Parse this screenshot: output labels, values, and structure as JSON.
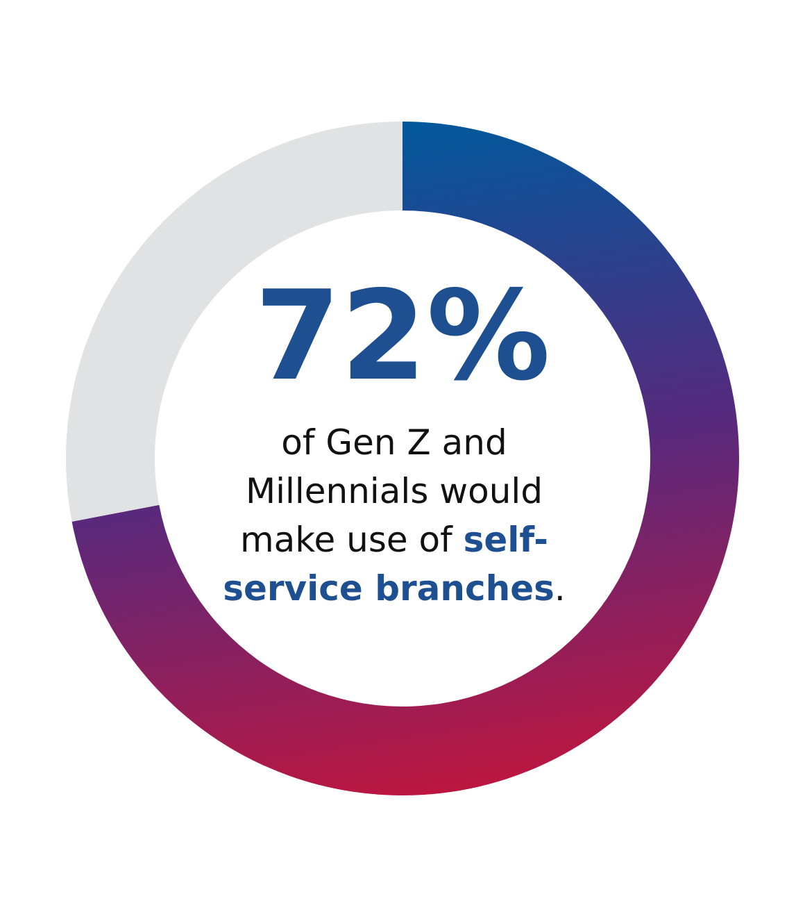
{
  "chart_data": {
    "type": "donut",
    "values": [
      72,
      28
    ],
    "value_labels": [
      "72%",
      null
    ],
    "colors": [
      [
        "#00599c",
        "#562a7e",
        "#be163f"
      ],
      "#e1e2e4"
    ],
    "highlight_color": "#1d4f91",
    "caption": [
      "of Gen Z and",
      "Millennials would",
      "make use of ",
      "self-",
      "service branches",
      "."
    ]
  }
}
